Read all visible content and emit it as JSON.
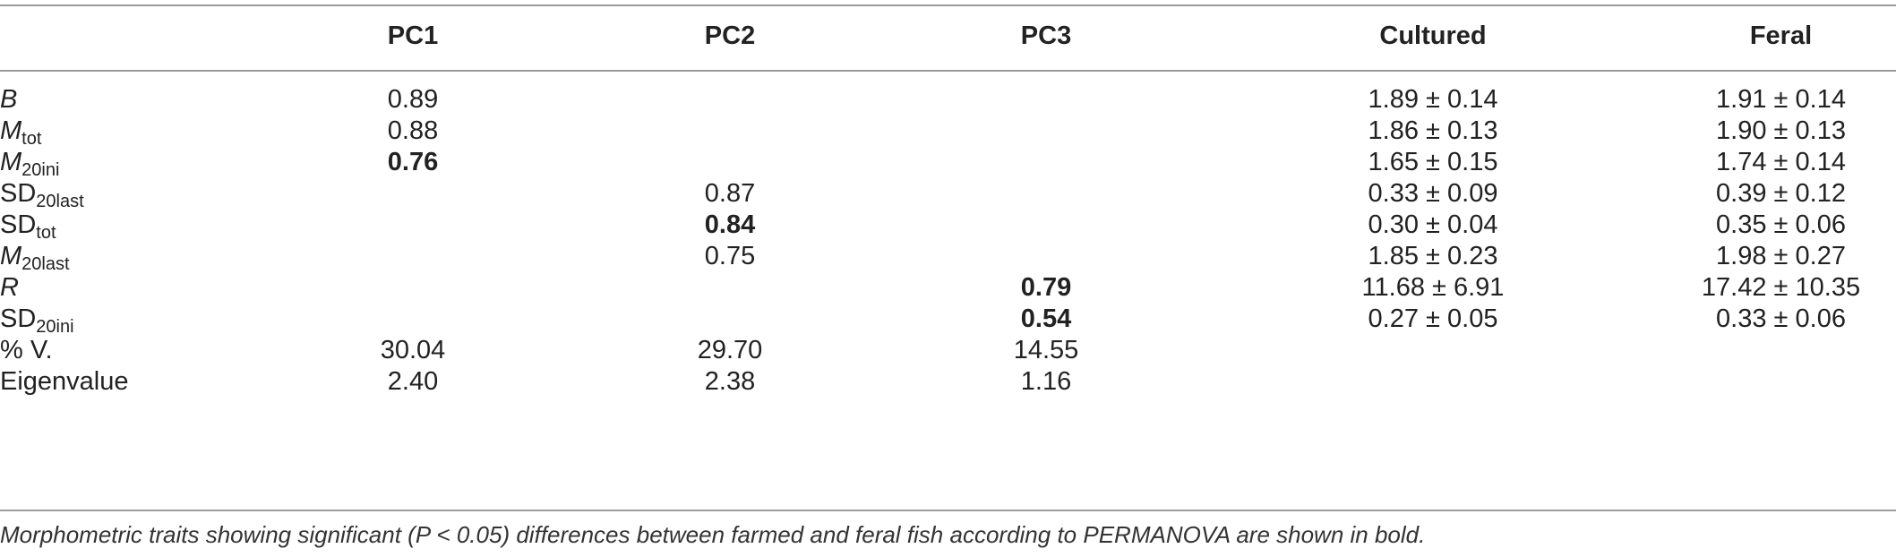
{
  "header": {
    "col0": "",
    "pc1": "PC1",
    "pc2": "PC2",
    "pc3": "PC3",
    "cultured": "Cultured",
    "feral": "Feral"
  },
  "rows": [
    {
      "trait_main": "B",
      "trait_sub": "",
      "italic": true,
      "pc1": "0.89",
      "pc1_bold": false,
      "pc2": "",
      "pc2_bold": false,
      "pc3": "",
      "pc3_bold": false,
      "cultured": "1.89 ± 0.14",
      "feral": "1.91 ± 0.14"
    },
    {
      "trait_main": "M",
      "trait_sub": "tot",
      "italic": true,
      "pc1": "0.88",
      "pc1_bold": false,
      "pc2": "",
      "pc2_bold": false,
      "pc3": "",
      "pc3_bold": false,
      "cultured": "1.86 ± 0.13",
      "feral": "1.90 ± 0.13"
    },
    {
      "trait_main": "M",
      "trait_sub": "20ini",
      "italic": true,
      "pc1": "0.76",
      "pc1_bold": true,
      "pc2": "",
      "pc2_bold": false,
      "pc3": "",
      "pc3_bold": false,
      "cultured": "1.65 ± 0.15",
      "feral": "1.74 ± 0.14"
    },
    {
      "trait_main": "SD",
      "trait_sub": "20last",
      "italic": false,
      "pc1": "",
      "pc1_bold": false,
      "pc2": "0.87",
      "pc2_bold": false,
      "pc3": "",
      "pc3_bold": false,
      "cultured": "0.33 ± 0.09",
      "feral": "0.39 ± 0.12"
    },
    {
      "trait_main": "SD",
      "trait_sub": "tot",
      "italic": false,
      "pc1": "",
      "pc1_bold": false,
      "pc2": "0.84",
      "pc2_bold": true,
      "pc3": "",
      "pc3_bold": false,
      "cultured": "0.30 ± 0.04",
      "feral": "0.35 ± 0.06"
    },
    {
      "trait_main": "M",
      "trait_sub": "20last",
      "italic": true,
      "pc1": "",
      "pc1_bold": false,
      "pc2": "0.75",
      "pc2_bold": false,
      "pc3": "",
      "pc3_bold": false,
      "cultured": "1.85 ± 0.23",
      "feral": "1.98 ± 0.27"
    },
    {
      "trait_main": "R",
      "trait_sub": "",
      "italic": true,
      "pc1": "",
      "pc1_bold": false,
      "pc2": "",
      "pc2_bold": false,
      "pc3": "0.79",
      "pc3_bold": true,
      "cultured": "11.68 ± 6.91",
      "feral": "17.42 ± 10.35"
    },
    {
      "trait_main": "SD",
      "trait_sub": "20ini",
      "italic": false,
      "pc1": "",
      "pc1_bold": false,
      "pc2": "",
      "pc2_bold": false,
      "pc3": "0.54",
      "pc3_bold": true,
      "cultured": "0.27 ± 0.05",
      "feral": "0.33 ± 0.06"
    },
    {
      "trait_main": "% V.",
      "trait_sub": "",
      "italic": false,
      "pc1": "30.04",
      "pc1_bold": false,
      "pc2": "29.70",
      "pc2_bold": false,
      "pc3": "14.55",
      "pc3_bold": false,
      "cultured": "",
      "feral": ""
    },
    {
      "trait_main": "Eigenvalue",
      "trait_sub": "",
      "italic": false,
      "pc1": "2.40",
      "pc1_bold": false,
      "pc2": "2.38",
      "pc2_bold": false,
      "pc3": "1.16",
      "pc3_bold": false,
      "cultured": "",
      "feral": ""
    }
  ],
  "footnote": "Morphometric traits showing significant (P < 0.05) differences between farmed and feral fish according to PERMANOVA are shown in bold."
}
